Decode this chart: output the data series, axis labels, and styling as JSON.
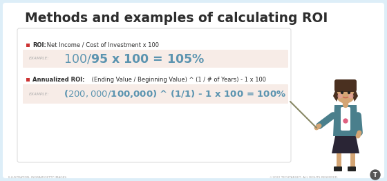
{
  "title": "Methods and examples of calculating ROI",
  "bg_outer": "#ddeef8",
  "bg_inner": "#ffffff",
  "bg_example": "#f7ece7",
  "title_color": "#2d2d2d",
  "roi_label_color": "#cc3333",
  "roi_bold": "ROI:",
  "roi_text": " Net Income / Cost of Investment x 100",
  "roi_formula_color": "#5b94b0",
  "roi_example_label": "EXAMPLE:",
  "roi_example": "$100 / $95 x 100 = 105%",
  "annualized_bold": "Annualized ROI:",
  "annualized_text": " (Ending Value / Beginning Value) ^ (1 / # of Years) - 1 x 100",
  "annualized_label_color": "#cc3333",
  "annualized_formula_color": "#5b94b0",
  "annualized_example_label": "EXAMPLE:",
  "annualized_example": "($200,000 / $100,000) ^ (1/1) - 1 x 100 = 100%",
  "example_label_color": "#aaaaaa",
  "footer_left": "ILLUSTRATION: INGRAM/GETTY IMAGES",
  "footer_right": "©2022 TECHTARGET, ALL RIGHTS RESERVED.",
  "footer_color": "#aaaaaa",
  "skin_color": "#d4a574",
  "hair_color": "#4a3020",
  "jacket_color": "#4a7f8c",
  "skirt_color": "#2a2535",
  "pointer_color": "#888866",
  "shirt_color": "#ffffff",
  "cheek_color": "#e8a0a0"
}
